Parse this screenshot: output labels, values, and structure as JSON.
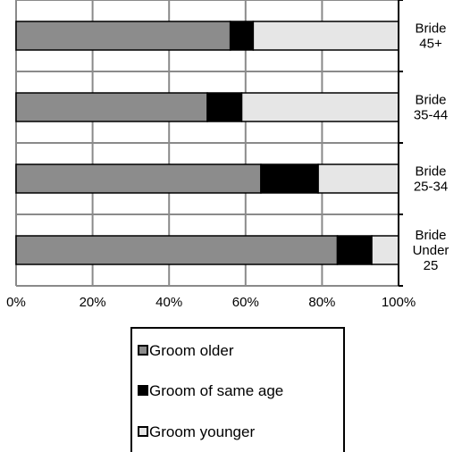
{
  "chart_data": {
    "type": "bar",
    "orientation": "horizontal",
    "stacked": "percent",
    "categories": [
      [
        "Bride",
        "45+"
      ],
      [
        "Bride",
        "35-44"
      ],
      [
        "Bride",
        "25-34"
      ],
      [
        "Bride",
        "Under",
        "25"
      ]
    ],
    "series": [
      {
        "name": "Groom older",
        "color": "#8c8c8c",
        "values": [
          56,
          50,
          64,
          84
        ]
      },
      {
        "name": "Groom of same age",
        "color": "#000000",
        "values": [
          6,
          9,
          15,
          9
        ]
      },
      {
        "name": "Groom younger",
        "color": "#e6e6e6",
        "values": [
          38,
          41,
          21,
          7
        ]
      }
    ],
    "x_ticks": [
      "0%",
      "20%",
      "40%",
      "60%",
      "80%",
      "100%"
    ],
    "xlim": [
      0,
      100
    ],
    "grid": true,
    "legend_position": "bottom",
    "legend_labels": [
      "Groom older",
      "Groom of same age",
      "Groom younger"
    ],
    "category_axis_position": "right"
  }
}
